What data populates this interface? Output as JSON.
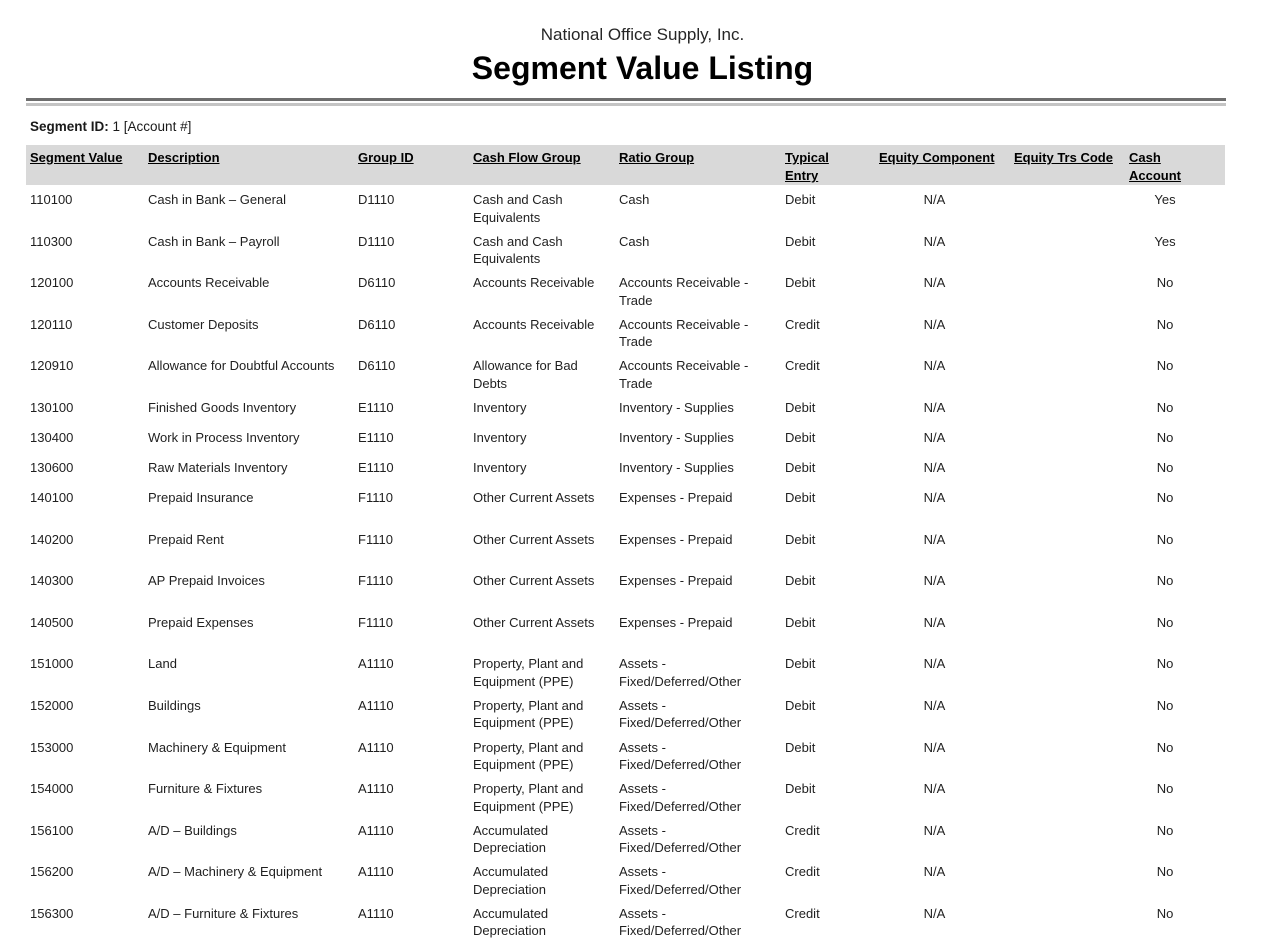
{
  "page": {
    "company_name": "National Office Supply, Inc.",
    "report_title": "Segment Value Listing"
  },
  "filter": {
    "label": "Segment ID:",
    "value": "1 [Account #]"
  },
  "colors": {
    "header_row_background": "#d9d9d9",
    "divider_dark": "#6e6e6e",
    "divider_light": "#c4c4c4",
    "table_bottom_rule": "#5a5a5a",
    "text": "#1f1f1f"
  },
  "table": {
    "columns": [
      {
        "key": "segment_value",
        "label": "Segment Value"
      },
      {
        "key": "description",
        "label": "Description"
      },
      {
        "key": "group_id",
        "label": "Group ID"
      },
      {
        "key": "cash_flow_group",
        "label": "Cash Flow Group"
      },
      {
        "key": "ratio_group",
        "label": "Ratio Group"
      },
      {
        "key": "typical_entry",
        "label": "Typical Entry"
      },
      {
        "key": "equity_component",
        "label": "Equity Component"
      },
      {
        "key": "equity_trs_code",
        "label": "Equity Trs Code"
      },
      {
        "key": "cash_account",
        "label": "Cash Account"
      }
    ],
    "rows": [
      {
        "segment_value": "110100",
        "description": "Cash in Bank – General",
        "group_id": "D1110",
        "cash_flow_group": "Cash and Cash Equivalents",
        "ratio_group": "Cash",
        "typical_entry": "Debit",
        "equity_component": "N/A",
        "equity_trs_code": "",
        "cash_account": "Yes",
        "tall": true
      },
      {
        "segment_value": "110300",
        "description": "Cash in Bank – Payroll",
        "group_id": "D1110",
        "cash_flow_group": "Cash and Cash Equivalents",
        "ratio_group": "Cash",
        "typical_entry": "Debit",
        "equity_component": "N/A",
        "equity_trs_code": "",
        "cash_account": "Yes",
        "tall": true
      },
      {
        "segment_value": "120100",
        "description": "Accounts Receivable",
        "group_id": "D6110",
        "cash_flow_group": "Accounts Receivable",
        "ratio_group": "Accounts Receivable - Trade",
        "typical_entry": "Debit",
        "equity_component": "N/A",
        "equity_trs_code": "",
        "cash_account": "No",
        "tall": true
      },
      {
        "segment_value": "120110",
        "description": "Customer Deposits",
        "group_id": "D6110",
        "cash_flow_group": "Accounts Receivable",
        "ratio_group": "Accounts Receivable - Trade",
        "typical_entry": "Credit",
        "equity_component": "N/A",
        "equity_trs_code": "",
        "cash_account": "No",
        "tall": true
      },
      {
        "segment_value": "120910",
        "description": "Allowance for Doubtful Accounts",
        "group_id": "D6110",
        "cash_flow_group": "Allowance for Bad Debts",
        "ratio_group": "Accounts Receivable - Trade",
        "typical_entry": "Credit",
        "equity_component": "N/A",
        "equity_trs_code": "",
        "cash_account": "No",
        "tall": true
      },
      {
        "segment_value": "130100",
        "description": "Finished Goods Inventory",
        "group_id": "E1110",
        "cash_flow_group": "Inventory",
        "ratio_group": "Inventory - Supplies",
        "typical_entry": "Debit",
        "equity_component": "N/A",
        "equity_trs_code": "",
        "cash_account": "No",
        "tall": false
      },
      {
        "segment_value": "130400",
        "description": "Work in Process Inventory",
        "group_id": "E1110",
        "cash_flow_group": "Inventory",
        "ratio_group": "Inventory - Supplies",
        "typical_entry": "Debit",
        "equity_component": "N/A",
        "equity_trs_code": "",
        "cash_account": "No",
        "tall": false
      },
      {
        "segment_value": "130600",
        "description": "Raw Materials Inventory",
        "group_id": "E1110",
        "cash_flow_group": "Inventory",
        "ratio_group": "Inventory - Supplies",
        "typical_entry": "Debit",
        "equity_component": "N/A",
        "equity_trs_code": "",
        "cash_account": "No",
        "tall": false
      },
      {
        "segment_value": "140100",
        "description": "Prepaid Insurance",
        "group_id": "F1110",
        "cash_flow_group": "Other Current Assets",
        "ratio_group": "Expenses - Prepaid",
        "typical_entry": "Debit",
        "equity_component": "N/A",
        "equity_trs_code": "",
        "cash_account": "No",
        "tall": true
      },
      {
        "segment_value": "140200",
        "description": "Prepaid Rent",
        "group_id": "F1110",
        "cash_flow_group": "Other Current Assets",
        "ratio_group": "Expenses - Prepaid",
        "typical_entry": "Debit",
        "equity_component": "N/A",
        "equity_trs_code": "",
        "cash_account": "No",
        "tall": true
      },
      {
        "segment_value": "140300",
        "description": "AP Prepaid Invoices",
        "group_id": "F1110",
        "cash_flow_group": "Other Current Assets",
        "ratio_group": "Expenses - Prepaid",
        "typical_entry": "Debit",
        "equity_component": "N/A",
        "equity_trs_code": "",
        "cash_account": "No",
        "tall": true
      },
      {
        "segment_value": "140500",
        "description": "Prepaid Expenses",
        "group_id": "F1110",
        "cash_flow_group": "Other Current Assets",
        "ratio_group": "Expenses - Prepaid",
        "typical_entry": "Debit",
        "equity_component": "N/A",
        "equity_trs_code": "",
        "cash_account": "No",
        "tall": true
      },
      {
        "segment_value": "151000",
        "description": "Land",
        "group_id": "A1110",
        "cash_flow_group": "Property, Plant and Equipment (PPE)",
        "ratio_group": "Assets - Fixed/Deferred/Other",
        "typical_entry": "Debit",
        "equity_component": "N/A",
        "equity_trs_code": "",
        "cash_account": "No",
        "tall": true
      },
      {
        "segment_value": "152000",
        "description": "Buildings",
        "group_id": "A1110",
        "cash_flow_group": "Property, Plant and Equipment (PPE)",
        "ratio_group": "Assets - Fixed/Deferred/Other",
        "typical_entry": "Debit",
        "equity_component": "N/A",
        "equity_trs_code": "",
        "cash_account": "No",
        "tall": true
      },
      {
        "segment_value": "153000",
        "description": "Machinery & Equipment",
        "group_id": "A1110",
        "cash_flow_group": "Property, Plant and Equipment (PPE)",
        "ratio_group": "Assets - Fixed/Deferred/Other",
        "typical_entry": "Debit",
        "equity_component": "N/A",
        "equity_trs_code": "",
        "cash_account": "No",
        "tall": true
      },
      {
        "segment_value": "154000",
        "description": "Furniture & Fixtures",
        "group_id": "A1110",
        "cash_flow_group": "Property, Plant and Equipment (PPE)",
        "ratio_group": "Assets - Fixed/Deferred/Other",
        "typical_entry": "Debit",
        "equity_component": "N/A",
        "equity_trs_code": "",
        "cash_account": "No",
        "tall": true
      },
      {
        "segment_value": "156100",
        "description": "A/D – Buildings",
        "group_id": "A1110",
        "cash_flow_group": "Accumulated Depreciation",
        "ratio_group": "Assets - Fixed/Deferred/Other",
        "typical_entry": "Credit",
        "equity_component": "N/A",
        "equity_trs_code": "",
        "cash_account": "No",
        "tall": true
      },
      {
        "segment_value": "156200",
        "description": "A/D – Machinery & Equipment",
        "group_id": "A1110",
        "cash_flow_group": "Accumulated Depreciation",
        "ratio_group": "Assets - Fixed/Deferred/Other",
        "typical_entry": "Credit",
        "equity_component": "N/A",
        "equity_trs_code": "",
        "cash_account": "No",
        "tall": true
      },
      {
        "segment_value": "156300",
        "description": "A/D – Furniture & Fixtures",
        "group_id": "A1110",
        "cash_flow_group": "Accumulated Depreciation",
        "ratio_group": "Assets - Fixed/Deferred/Other",
        "typical_entry": "Credit",
        "equity_component": "N/A",
        "equity_trs_code": "",
        "cash_account": "No",
        "tall": true
      }
    ]
  }
}
